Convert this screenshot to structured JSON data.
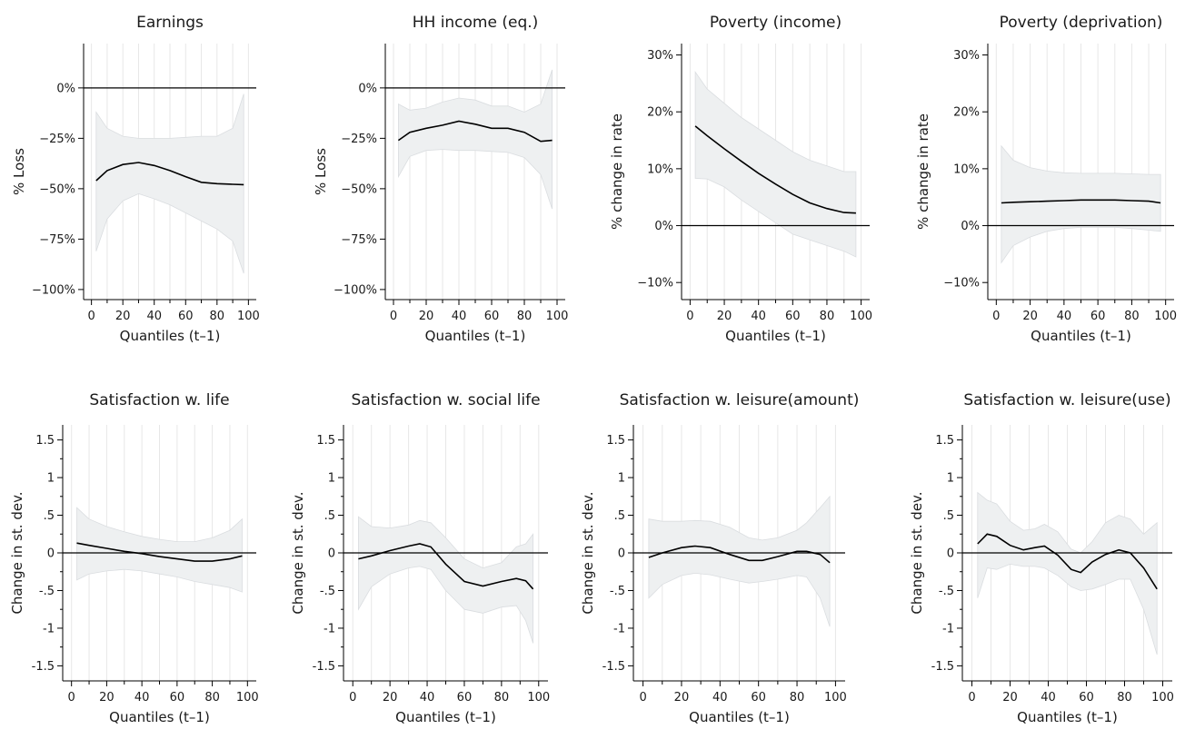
{
  "chart_data": [
    {
      "type": "line",
      "title": "Earnings",
      "xlabel": "Quantiles (t–1)",
      "ylabel": "% Loss",
      "xlim": [
        -5,
        105
      ],
      "ylim": [
        -105,
        22
      ],
      "xticks": [
        0,
        20,
        40,
        60,
        80,
        100
      ],
      "xtick_labels": [
        "0",
        "20",
        "40",
        "60",
        "80",
        "100"
      ],
      "yticks": [
        0,
        -25,
        -50,
        -75,
        -100
      ],
      "ytick_labels": [
        "0%",
        "−25%",
        "−50%",
        "−75%",
        "−100%"
      ],
      "zero_line": 0,
      "x": [
        3,
        10,
        20,
        30,
        40,
        50,
        60,
        70,
        80,
        90,
        97
      ],
      "y": [
        -46,
        -41,
        -38,
        -37,
        -38.5,
        -41,
        -44,
        -46.8,
        -47.5,
        -47.8,
        -48
      ],
      "ci_upper": [
        -12,
        -20,
        -24,
        -25,
        -25,
        -25,
        -24.5,
        -24,
        -24,
        -20,
        -3
      ],
      "ci_lower": [
        -81,
        -65,
        -56,
        -52.5,
        -55,
        -58,
        -62,
        -66,
        -70,
        -76,
        -92
      ]
    },
    {
      "type": "line",
      "title": "HH income (eq.)",
      "xlabel": "Quantiles (t–1)",
      "ylabel": "% Loss",
      "xlim": [
        -5,
        105
      ],
      "ylim": [
        -105,
        22
      ],
      "xticks": [
        0,
        20,
        40,
        60,
        80,
        100
      ],
      "xtick_labels": [
        "0",
        "20",
        "40",
        "60",
        "80",
        "100"
      ],
      "yticks": [
        0,
        -25,
        -50,
        -75,
        -100
      ],
      "ytick_labels": [
        "0%",
        "−25%",
        "−50%",
        "−75%",
        "−100%"
      ],
      "zero_line": 0,
      "x": [
        3,
        10,
        20,
        30,
        40,
        50,
        60,
        70,
        80,
        90,
        97
      ],
      "y": [
        -26,
        -22,
        -20,
        -18.5,
        -16.5,
        -18,
        -20,
        -20,
        -22,
        -26.5,
        -26
      ],
      "ci_upper": [
        -8,
        -11,
        -10,
        -7,
        -5,
        -6,
        -9,
        -9,
        -12,
        -8,
        9
      ],
      "ci_lower": [
        -44,
        -34,
        -31,
        -30.5,
        -31,
        -31,
        -31.5,
        -32,
        -34.5,
        -43,
        -60
      ]
    },
    {
      "type": "line",
      "title": "Poverty (income)",
      "xlabel": "Quantiles (t–1)",
      "ylabel": "% change in rate",
      "xlim": [
        -5,
        105
      ],
      "ylim": [
        -13,
        32
      ],
      "xticks": [
        0,
        20,
        40,
        60,
        80,
        100
      ],
      "xtick_labels": [
        "0",
        "20",
        "40",
        "60",
        "80",
        "100"
      ],
      "yticks": [
        30,
        20,
        10,
        0,
        -10
      ],
      "ytick_labels": [
        "30%",
        "20%",
        "10%",
        "0%",
        "−10%"
      ],
      "zero_line": 0,
      "x": [
        3,
        10,
        20,
        30,
        40,
        50,
        60,
        70,
        80,
        90,
        97
      ],
      "y": [
        17.5,
        15.8,
        13.5,
        11.3,
        9.2,
        7.3,
        5.5,
        4.0,
        3.0,
        2.3,
        2.2
      ],
      "ci_upper": [
        27,
        24,
        21.5,
        19,
        17,
        15,
        13,
        11.5,
        10.5,
        9.5,
        9.5
      ],
      "ci_lower": [
        8.3,
        8.2,
        6.8,
        4.5,
        2.5,
        0.5,
        -1.5,
        -2.5,
        -3.5,
        -4.5,
        -5.5
      ]
    },
    {
      "type": "line",
      "title": "Poverty (deprivation)",
      "xlabel": "Quantiles (t–1)",
      "ylabel": "% change in rate",
      "xlim": [
        -5,
        105
      ],
      "ylim": [
        -13,
        32
      ],
      "xticks": [
        0,
        20,
        40,
        60,
        80,
        100
      ],
      "xtick_labels": [
        "0",
        "20",
        "40",
        "60",
        "80",
        "100"
      ],
      "yticks": [
        30,
        20,
        10,
        0,
        -10
      ],
      "ytick_labels": [
        "30%",
        "20%",
        "10%",
        "0%",
        "−10%"
      ],
      "zero_line": 0,
      "x": [
        3,
        10,
        20,
        30,
        40,
        50,
        60,
        70,
        80,
        90,
        97
      ],
      "y": [
        4.0,
        4.1,
        4.2,
        4.3,
        4.4,
        4.5,
        4.5,
        4.5,
        4.4,
        4.3,
        4.0
      ],
      "ci_upper": [
        14,
        11.5,
        10.2,
        9.6,
        9.3,
        9.2,
        9.2,
        9.2,
        9.1,
        9.0,
        9.0
      ],
      "ci_lower": [
        -6.5,
        -3.5,
        -2.0,
        -1.0,
        -0.5,
        -0.3,
        -0.3,
        -0.3,
        -0.5,
        -0.8,
        -1.0
      ]
    },
    {
      "type": "line",
      "title": "Satisfaction w. life",
      "xlabel": "Quantiles (t–1)",
      "ylabel": "Change in st. dev.",
      "xlim": [
        -5,
        105
      ],
      "ylim": [
        -1.7,
        1.7
      ],
      "xticks": [
        0,
        20,
        40,
        60,
        80,
        100
      ],
      "xtick_labels": [
        "0",
        "20",
        "40",
        "60",
        "80",
        "100"
      ],
      "yticks": [
        1.5,
        1,
        0.5,
        0,
        -0.5,
        -1,
        -1.5
      ],
      "ytick_labels": [
        "1.5",
        "1",
        ".5",
        "0",
        "-.5",
        "-1",
        "-1.5"
      ],
      "zero_line": 0,
      "x": [
        3,
        10,
        20,
        30,
        40,
        50,
        60,
        70,
        80,
        90,
        97
      ],
      "y": [
        0.13,
        0.1,
        0.06,
        0.02,
        -0.01,
        -0.05,
        -0.08,
        -0.11,
        -0.11,
        -0.08,
        -0.04
      ],
      "ci_upper": [
        0.6,
        0.45,
        0.35,
        0.28,
        0.22,
        0.18,
        0.15,
        0.15,
        0.2,
        0.3,
        0.45
      ],
      "ci_lower": [
        -0.36,
        -0.28,
        -0.24,
        -0.22,
        -0.24,
        -0.28,
        -0.32,
        -0.38,
        -0.42,
        -0.46,
        -0.52
      ]
    },
    {
      "type": "line",
      "title": "Satisfaction w. social life",
      "xlabel": "Quantiles (t–1)",
      "ylabel": "Change in st. dev.",
      "xlim": [
        -5,
        105
      ],
      "ylim": [
        -1.7,
        1.7
      ],
      "xticks": [
        0,
        20,
        40,
        60,
        80,
        100
      ],
      "xtick_labels": [
        "0",
        "20",
        "40",
        "60",
        "80",
        "100"
      ],
      "yticks": [
        1.5,
        1,
        0.5,
        0,
        -0.5,
        -1,
        -1.5
      ],
      "ytick_labels": [
        "1.5",
        "1",
        ".5",
        "0",
        "-.5",
        "-1",
        "-1.5"
      ],
      "zero_line": 0,
      "x": [
        3,
        10,
        20,
        30,
        36,
        42,
        50,
        60,
        70,
        80,
        88,
        93,
        97
      ],
      "y": [
        -0.08,
        -0.04,
        0.03,
        0.09,
        0.12,
        0.08,
        -0.15,
        -0.38,
        -0.44,
        -0.38,
        -0.34,
        -0.37,
        -0.48
      ],
      "ci_upper": [
        0.48,
        0.35,
        0.33,
        0.37,
        0.43,
        0.4,
        0.2,
        -0.08,
        -0.2,
        -0.13,
        0.08,
        0.12,
        0.25
      ],
      "ci_lower": [
        -0.75,
        -0.45,
        -0.28,
        -0.2,
        -0.18,
        -0.22,
        -0.5,
        -0.75,
        -0.8,
        -0.72,
        -0.7,
        -0.9,
        -1.2
      ]
    },
    {
      "type": "line",
      "title": "Satisfaction w. leisure(amount)",
      "xlabel": "Quantiles (t–1)",
      "ylabel": "Change in st. dev.",
      "xlim": [
        -5,
        105
      ],
      "ylim": [
        -1.7,
        1.7
      ],
      "xticks": [
        0,
        20,
        40,
        60,
        80,
        100
      ],
      "xtick_labels": [
        "0",
        "20",
        "40",
        "60",
        "80",
        "100"
      ],
      "yticks": [
        1.5,
        1,
        0.5,
        0,
        -0.5,
        -1,
        -1.5
      ],
      "ytick_labels": [
        "1.5",
        "1",
        ".5",
        "0",
        "-.5",
        "-1",
        "-1.5"
      ],
      "zero_line": 0,
      "x": [
        3,
        10,
        20,
        27,
        35,
        45,
        55,
        62,
        70,
        80,
        85,
        92,
        97
      ],
      "y": [
        -0.06,
        0.0,
        0.07,
        0.09,
        0.07,
        -0.02,
        -0.1,
        -0.1,
        -0.05,
        0.02,
        0.02,
        -0.02,
        -0.13
      ],
      "ci_upper": [
        0.45,
        0.42,
        0.42,
        0.43,
        0.42,
        0.34,
        0.2,
        0.17,
        0.2,
        0.3,
        0.4,
        0.6,
        0.75
      ],
      "ci_lower": [
        -0.6,
        -0.42,
        -0.3,
        -0.27,
        -0.29,
        -0.35,
        -0.4,
        -0.38,
        -0.35,
        -0.3,
        -0.32,
        -0.6,
        -0.98
      ]
    },
    {
      "type": "line",
      "title": "Satisfaction w. leisure(use)",
      "xlabel": "Quantiles (t–1)",
      "ylabel": "Change in st. dev.",
      "xlim": [
        -5,
        105
      ],
      "ylim": [
        -1.7,
        1.7
      ],
      "xticks": [
        0,
        20,
        40,
        60,
        80,
        100
      ],
      "xtick_labels": [
        "0",
        "20",
        "40",
        "60",
        "80",
        "100"
      ],
      "yticks": [
        1.5,
        1,
        0.5,
        0,
        -0.5,
        -1,
        -1.5
      ],
      "ytick_labels": [
        "1.5",
        "1",
        ".5",
        "0",
        "-.5",
        "-1",
        "-1.5"
      ],
      "zero_line": 0,
      "x": [
        3,
        8,
        13,
        20,
        27,
        33,
        38,
        45,
        52,
        57,
        63,
        70,
        77,
        83,
        90,
        97
      ],
      "y": [
        0.12,
        0.25,
        0.22,
        0.1,
        0.04,
        0.07,
        0.09,
        -0.03,
        -0.22,
        -0.26,
        -0.12,
        -0.02,
        0.04,
        0.0,
        -0.2,
        -0.48
      ],
      "ci_upper": [
        0.8,
        0.7,
        0.65,
        0.42,
        0.3,
        0.32,
        0.38,
        0.28,
        0.05,
        0.0,
        0.15,
        0.4,
        0.5,
        0.45,
        0.25,
        0.4
      ],
      "ci_lower": [
        -0.6,
        -0.2,
        -0.22,
        -0.15,
        -0.18,
        -0.18,
        -0.2,
        -0.3,
        -0.45,
        -0.5,
        -0.48,
        -0.42,
        -0.35,
        -0.35,
        -0.75,
        -1.35
      ]
    }
  ]
}
